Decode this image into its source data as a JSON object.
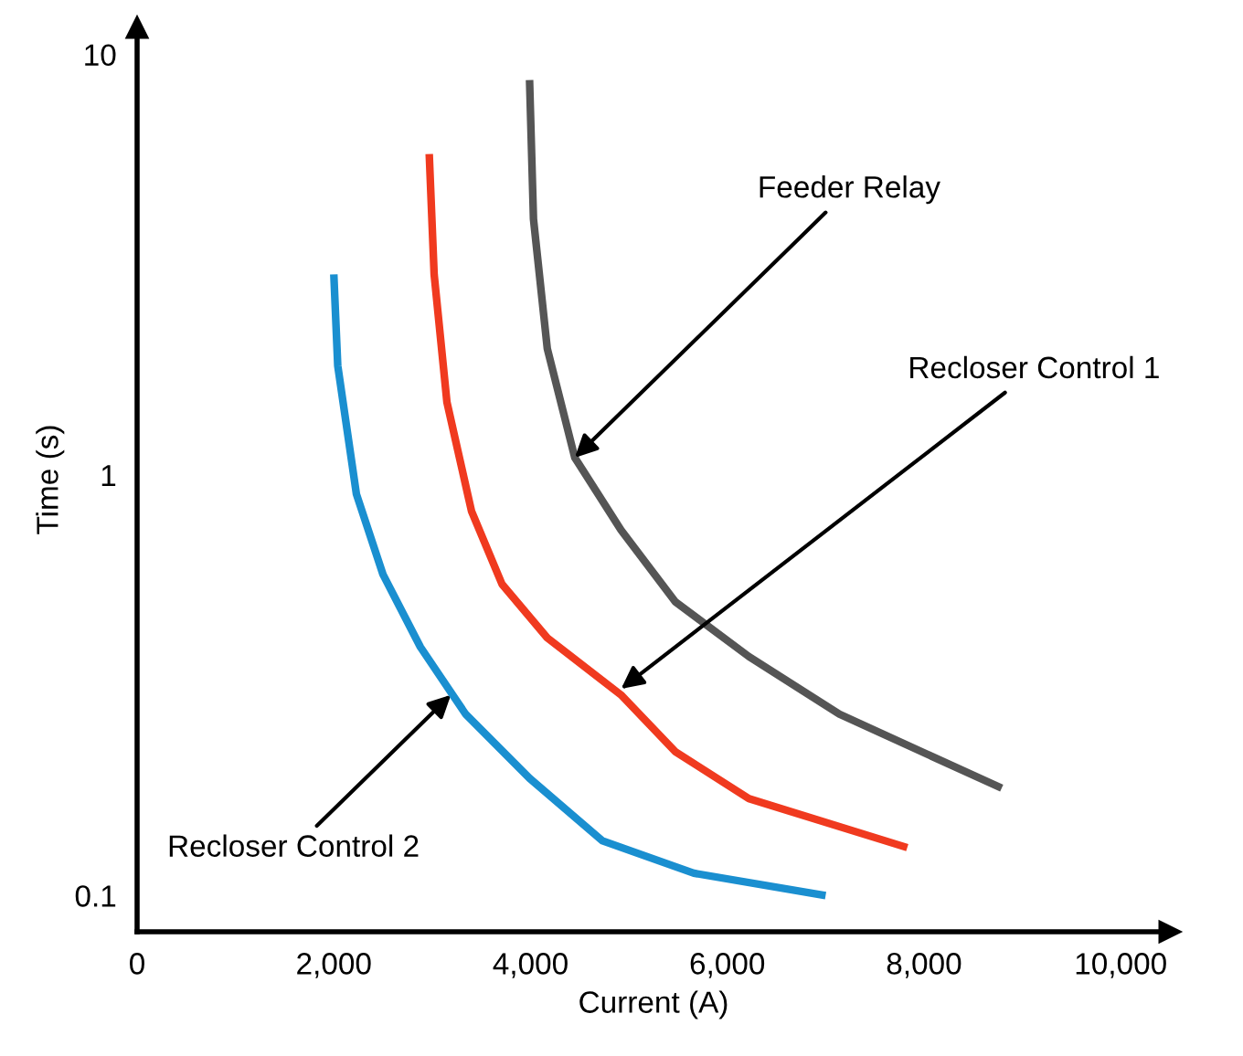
{
  "chart_data": {
    "type": "line",
    "xlabel": "Current (A)",
    "ylabel": "Time (s)",
    "log": "y",
    "xlim": [
      0,
      10500
    ],
    "ylim": [
      0.082,
      11.6
    ],
    "xticks": [
      0,
      {
        "value": 2000,
        "label": "2,000"
      },
      {
        "value": 4000,
        "label": "4,000"
      },
      {
        "value": 6000,
        "label": "6,000"
      },
      {
        "value": 8000,
        "label": "8,000"
      },
      {
        "value": 10000,
        "label": "10,000"
      }
    ],
    "yticks": [
      0.1,
      1,
      10
    ],
    "grid": false,
    "legend": false,
    "marker": "none",
    "line_style": "solid",
    "series": [
      {
        "color": "#1a8fd0",
        "x": [
          2000,
          2040,
          2230,
          2500,
          2880,
          3340,
          3990,
          4730,
          5660,
          7000
        ],
        "values": [
          3.0,
          1.82,
          0.9,
          0.58,
          0.39,
          0.27,
          0.19,
          0.135,
          0.113,
          0.1
        ]
      },
      {
        "color": "#f03a1f",
        "x": [
          2970,
          3020,
          3150,
          3400,
          3710,
          4170,
          4920,
          5470,
          6220,
          7830
        ],
        "values": [
          5.8,
          3.0,
          1.49,
          0.82,
          0.55,
          0.41,
          0.3,
          0.22,
          0.17,
          0.13
        ]
      },
      {
        "color": "#555555",
        "x": [
          3990,
          4030,
          4170,
          4450,
          4920,
          5470,
          6220,
          7140,
          8790
        ],
        "values": [
          8.7,
          4.06,
          2.0,
          1.1,
          0.74,
          0.5,
          0.37,
          0.27,
          0.18
        ]
      }
    ],
    "annotations": [
      {
        "text": "Feeder Relay",
        "x": 4450,
        "y": 1.1
      },
      {
        "text": "Recloser Control 1",
        "x": 4920,
        "y": 0.31
      },
      {
        "text": "Recloser Control 2",
        "x": 3190,
        "y": 0.3
      }
    ]
  }
}
